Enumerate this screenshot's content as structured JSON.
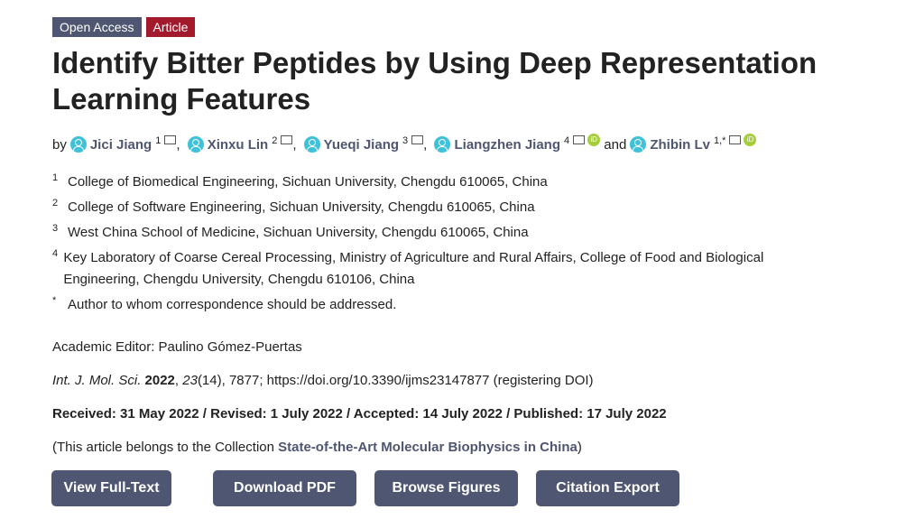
{
  "badges": {
    "open_access": "Open Access",
    "type": "Article"
  },
  "title": "Identify Bitter Peptides by Using Deep Representation Learning Features",
  "by": "by",
  "and": "and",
  "authors": [
    {
      "name": "Jici Jiang",
      "sup": "1"
    },
    {
      "name": "Xinxu Lin",
      "sup": "2"
    },
    {
      "name": "Yueqi Jiang",
      "sup": "3"
    },
    {
      "name": "Liangzhen Jiang",
      "sup": "4"
    },
    {
      "name": "Zhibin Lv",
      "sup": "1,*"
    }
  ],
  "affiliations": [
    {
      "n": "1",
      "text": "College of Biomedical Engineering, Sichuan University, Chengdu 610065, China"
    },
    {
      "n": "2",
      "text": "College of Software Engineering, Sichuan University, Chengdu 610065, China"
    },
    {
      "n": "3",
      "text": "West China School of Medicine, Sichuan University, Chengdu 610065, China"
    },
    {
      "n": "4",
      "text": "Key Laboratory of Coarse Cereal Processing, Ministry of Agriculture and Rural Affairs, College of Food and Biological Engineering, Chengdu University, Chengdu 610106, China"
    },
    {
      "n": "*",
      "text": "Author to whom correspondence should be addressed."
    }
  ],
  "editor": "Academic Editor: Paulino Gómez-Puertas",
  "citation": {
    "journal": "Int. J. Mol. Sci.",
    "year": "2022",
    "volume": "23",
    "rest": "(14), 7877; https://doi.org/10.3390/ijms23147877 (registering DOI)"
  },
  "dates": "Received: 31 May 2022 / Revised: 1 July 2022 / Accepted: 14 July 2022 / Published: 17 July 2022",
  "collection": {
    "prefix": "(This article belongs to the Collection ",
    "name": "State-of-the-Art Molecular Biophysics in China",
    "suffix": ")"
  },
  "buttons": [
    "View Full-Text",
    "Download PDF",
    "Browse Figures",
    "Citation Export"
  ],
  "orcid_label": "iD"
}
